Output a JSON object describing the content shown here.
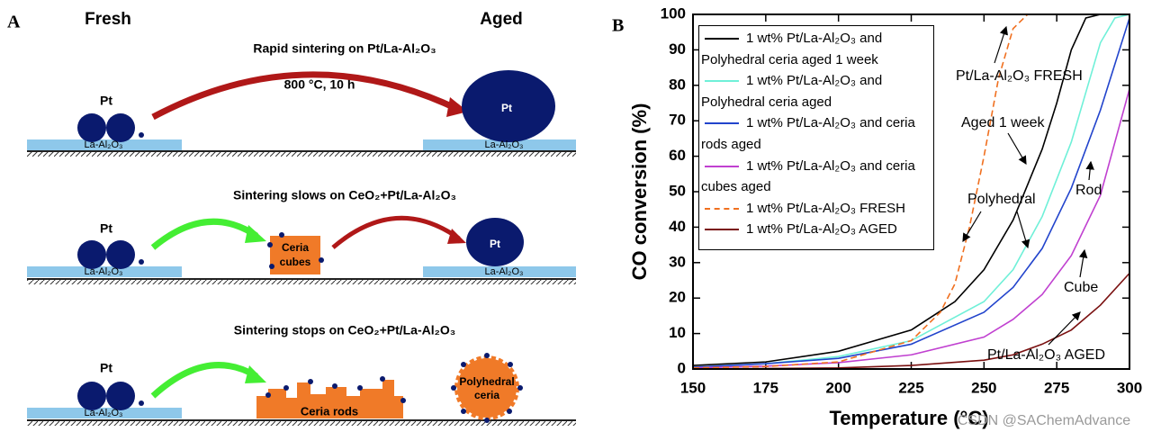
{
  "panel_a": {
    "label": "A",
    "fresh": "Fresh",
    "aged": "Aged",
    "row1": {
      "title": "Rapid sintering on Pt/La-Al₂O₃",
      "condition": "800 °C, 10 h",
      "pt_fresh": "Pt",
      "support_fresh": "La-Al₂O₃",
      "pt_aged": "Pt",
      "support_aged": "La-Al₂O₃"
    },
    "row2": {
      "title": "Sintering slows on CeO₂+Pt/La-Al₂O₃",
      "pt_fresh": "Pt",
      "support_fresh": "La-Al₂O₃",
      "ceria": [
        "Ceria",
        "cubes"
      ],
      "pt_aged": "Pt",
      "support_aged": "La-Al₂O₃"
    },
    "row3": {
      "title": "Sintering stops on CeO₂+Pt/La-Al₂O₃",
      "pt_fresh": "Pt",
      "support_fresh": "La-Al₂O₃",
      "ceria": "Ceria rods",
      "polyhedral": [
        "Polyhedral",
        "ceria"
      ]
    }
  },
  "panel_b": {
    "label": "B"
  },
  "watermark": "CSDN @SAChemAdvance",
  "chart_data": {
    "type": "line",
    "x_label": "Temperature (°C)",
    "y_label": "CO conversion (%)",
    "xlim": [
      150,
      300
    ],
    "xticks": [
      150,
      175,
      200,
      225,
      250,
      275,
      300
    ],
    "ylim": [
      0,
      100
    ],
    "yticks": [
      0,
      10,
      20,
      30,
      40,
      50,
      60,
      70,
      80,
      90,
      100
    ],
    "legend": "upper left",
    "series": [
      {
        "name": "1 wt% Pt/La-Al₂O₃ and Polyhedral ceria aged 1 week",
        "color": "#000000",
        "dash": false,
        "x": [
          150,
          175,
          200,
          225,
          240,
          250,
          260,
          270,
          275,
          280,
          285,
          290,
          300
        ],
        "values": [
          1,
          2,
          5,
          11,
          19,
          28,
          42,
          62,
          75,
          90,
          99,
          100,
          100
        ]
      },
      {
        "name": "1 wt% Pt/La-Al₂O₃ and Polyhedral ceria aged",
        "color": "#6ff0d8",
        "dash": false,
        "x": [
          150,
          175,
          200,
          225,
          250,
          260,
          270,
          280,
          285,
          290,
          295,
          300
        ],
        "values": [
          0.5,
          1.5,
          3.5,
          8,
          19,
          28,
          43,
          64,
          78,
          92,
          99,
          100
        ]
      },
      {
        "name": "1 wt% Pt/La-Al₂O₃ and ceria rods aged",
        "color": "#2244cc",
        "dash": false,
        "x": [
          150,
          175,
          200,
          225,
          250,
          260,
          270,
          280,
          290,
          295,
          300
        ],
        "values": [
          0.5,
          1.5,
          3,
          7,
          16,
          23,
          34,
          51,
          73,
          86,
          99
        ]
      },
      {
        "name": "1 wt% Pt/La-Al₂O₃ and ceria cubes aged",
        "color": "#c040d0",
        "dash": false,
        "x": [
          150,
          175,
          200,
          225,
          250,
          260,
          270,
          280,
          290,
          300
        ],
        "values": [
          0.3,
          0.8,
          1.8,
          4,
          9,
          14,
          21,
          32,
          49,
          79
        ]
      },
      {
        "name": "1 wt% Pt/La-Al₂O₃ FRESH",
        "color": "#f07020",
        "dash": true,
        "x": [
          150,
          175,
          200,
          225,
          235,
          240,
          245,
          250,
          255,
          260,
          265,
          300
        ],
        "values": [
          0.3,
          0.7,
          2,
          8,
          16,
          24,
          40,
          60,
          82,
          96,
          100,
          100
        ]
      },
      {
        "name": "1 wt% Pt/La-Al₂O₃ AGED",
        "color": "#7a1010",
        "dash": false,
        "x": [
          150,
          200,
          225,
          250,
          260,
          270,
          280,
          290,
          300
        ],
        "values": [
          0,
          0.3,
          1,
          2.5,
          4,
          7,
          11,
          18,
          27
        ]
      }
    ],
    "annotations": [
      "Pt/La-Al₂O₃ FRESH",
      "Aged 1 week",
      "Polyhedral",
      "Rod",
      "Cube",
      "Pt/La-Al₂O₃ AGED"
    ]
  }
}
